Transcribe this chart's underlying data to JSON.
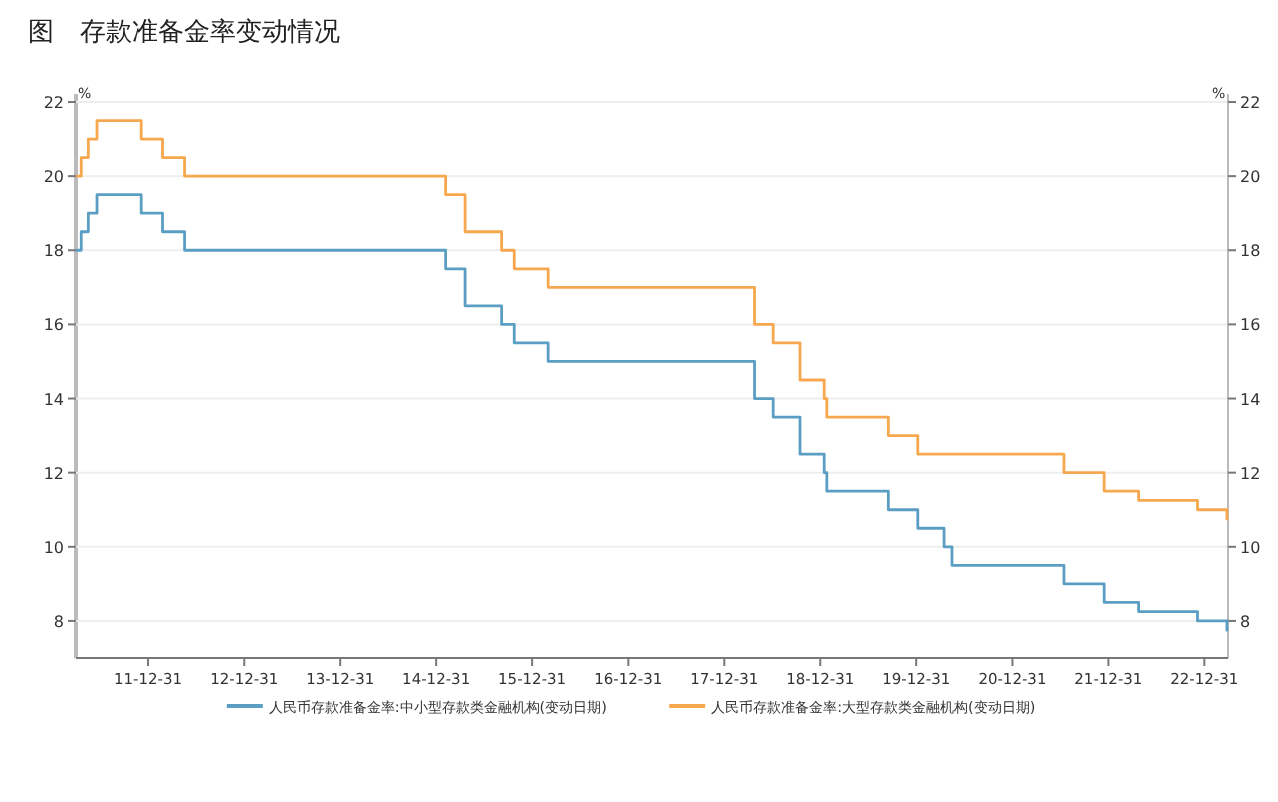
{
  "chart_data": {
    "type": "step",
    "title": "图　存款准备金率变动情况",
    "ylabel": "%",
    "y2label": "%",
    "xlim": [
      "2011-04-01",
      "2023-03-31"
    ],
    "ylim": [
      7,
      22
    ],
    "y2lim": [
      7,
      22
    ],
    "yticks": [
      8,
      10,
      12,
      14,
      16,
      18,
      20,
      22
    ],
    "y2ticks": [
      8,
      10,
      12,
      14,
      16,
      18,
      20,
      22
    ],
    "xticks": [
      {
        "value": "2011-12-31",
        "label": "11-12-31"
      },
      {
        "value": "2012-12-31",
        "label": "12-12-31"
      },
      {
        "value": "2013-12-31",
        "label": "13-12-31"
      },
      {
        "value": "2014-12-31",
        "label": "14-12-31"
      },
      {
        "value": "2015-12-31",
        "label": "15-12-31"
      },
      {
        "value": "2016-12-31",
        "label": "16-12-31"
      },
      {
        "value": "2017-12-31",
        "label": "17-12-31"
      },
      {
        "value": "2018-12-31",
        "label": "18-12-31"
      },
      {
        "value": "2019-12-31",
        "label": "19-12-31"
      },
      {
        "value": "2020-12-31",
        "label": "20-12-31"
      },
      {
        "value": "2021-12-31",
        "label": "21-12-31"
      },
      {
        "value": "2022-12-31",
        "label": "22-12-31"
      }
    ],
    "grid": "y",
    "legend": "bottom",
    "marker": "none",
    "line_style": "solid",
    "series": [
      {
        "name": "人民币存款准备金率:中小型存款类金融机构(变动日期)",
        "color": "#5b9ec4",
        "x": [
          "2011-04-01",
          "2011-04-21",
          "2011-05-18",
          "2011-06-20",
          "2011-12-05",
          "2012-02-24",
          "2012-05-18",
          "2015-02-05",
          "2015-04-20",
          "2015-09-06",
          "2015-10-24",
          "2016-03-01",
          "2018-04-25",
          "2018-07-05",
          "2018-10-15",
          "2019-01-15",
          "2019-01-25",
          "2019-09-16",
          "2020-01-06",
          "2020-04-15",
          "2020-05-15",
          "2021-07-15",
          "2021-12-15",
          "2022-04-25",
          "2022-12-05",
          "2023-03-27"
        ],
        "values": [
          18,
          18.5,
          19,
          19.5,
          19,
          18.5,
          18,
          17.5,
          16.5,
          16,
          15.5,
          15,
          14,
          13.5,
          12.5,
          12,
          11.5,
          11,
          10.5,
          10,
          9.5,
          9,
          8.5,
          8.25,
          8,
          7.75
        ]
      },
      {
        "name": "人民币存款准备金率:大型存款类金融机构(变动日期)",
        "color": "#f7a84e",
        "x": [
          "2011-04-01",
          "2011-04-21",
          "2011-05-18",
          "2011-06-20",
          "2011-12-05",
          "2012-02-24",
          "2012-05-18",
          "2015-02-05",
          "2015-04-20",
          "2015-09-06",
          "2015-10-24",
          "2016-03-01",
          "2018-04-25",
          "2018-07-05",
          "2018-10-15",
          "2019-01-15",
          "2019-01-25",
          "2019-09-16",
          "2020-01-06",
          "2021-07-15",
          "2021-12-15",
          "2022-04-25",
          "2022-12-05",
          "2023-03-27"
        ],
        "values": [
          20,
          20.5,
          21,
          21.5,
          21,
          20.5,
          20,
          19.5,
          18.5,
          18,
          17.5,
          17,
          16,
          15.5,
          14.5,
          14,
          13.5,
          13,
          12.5,
          12,
          11.5,
          11.25,
          11,
          10.75
        ]
      }
    ]
  }
}
